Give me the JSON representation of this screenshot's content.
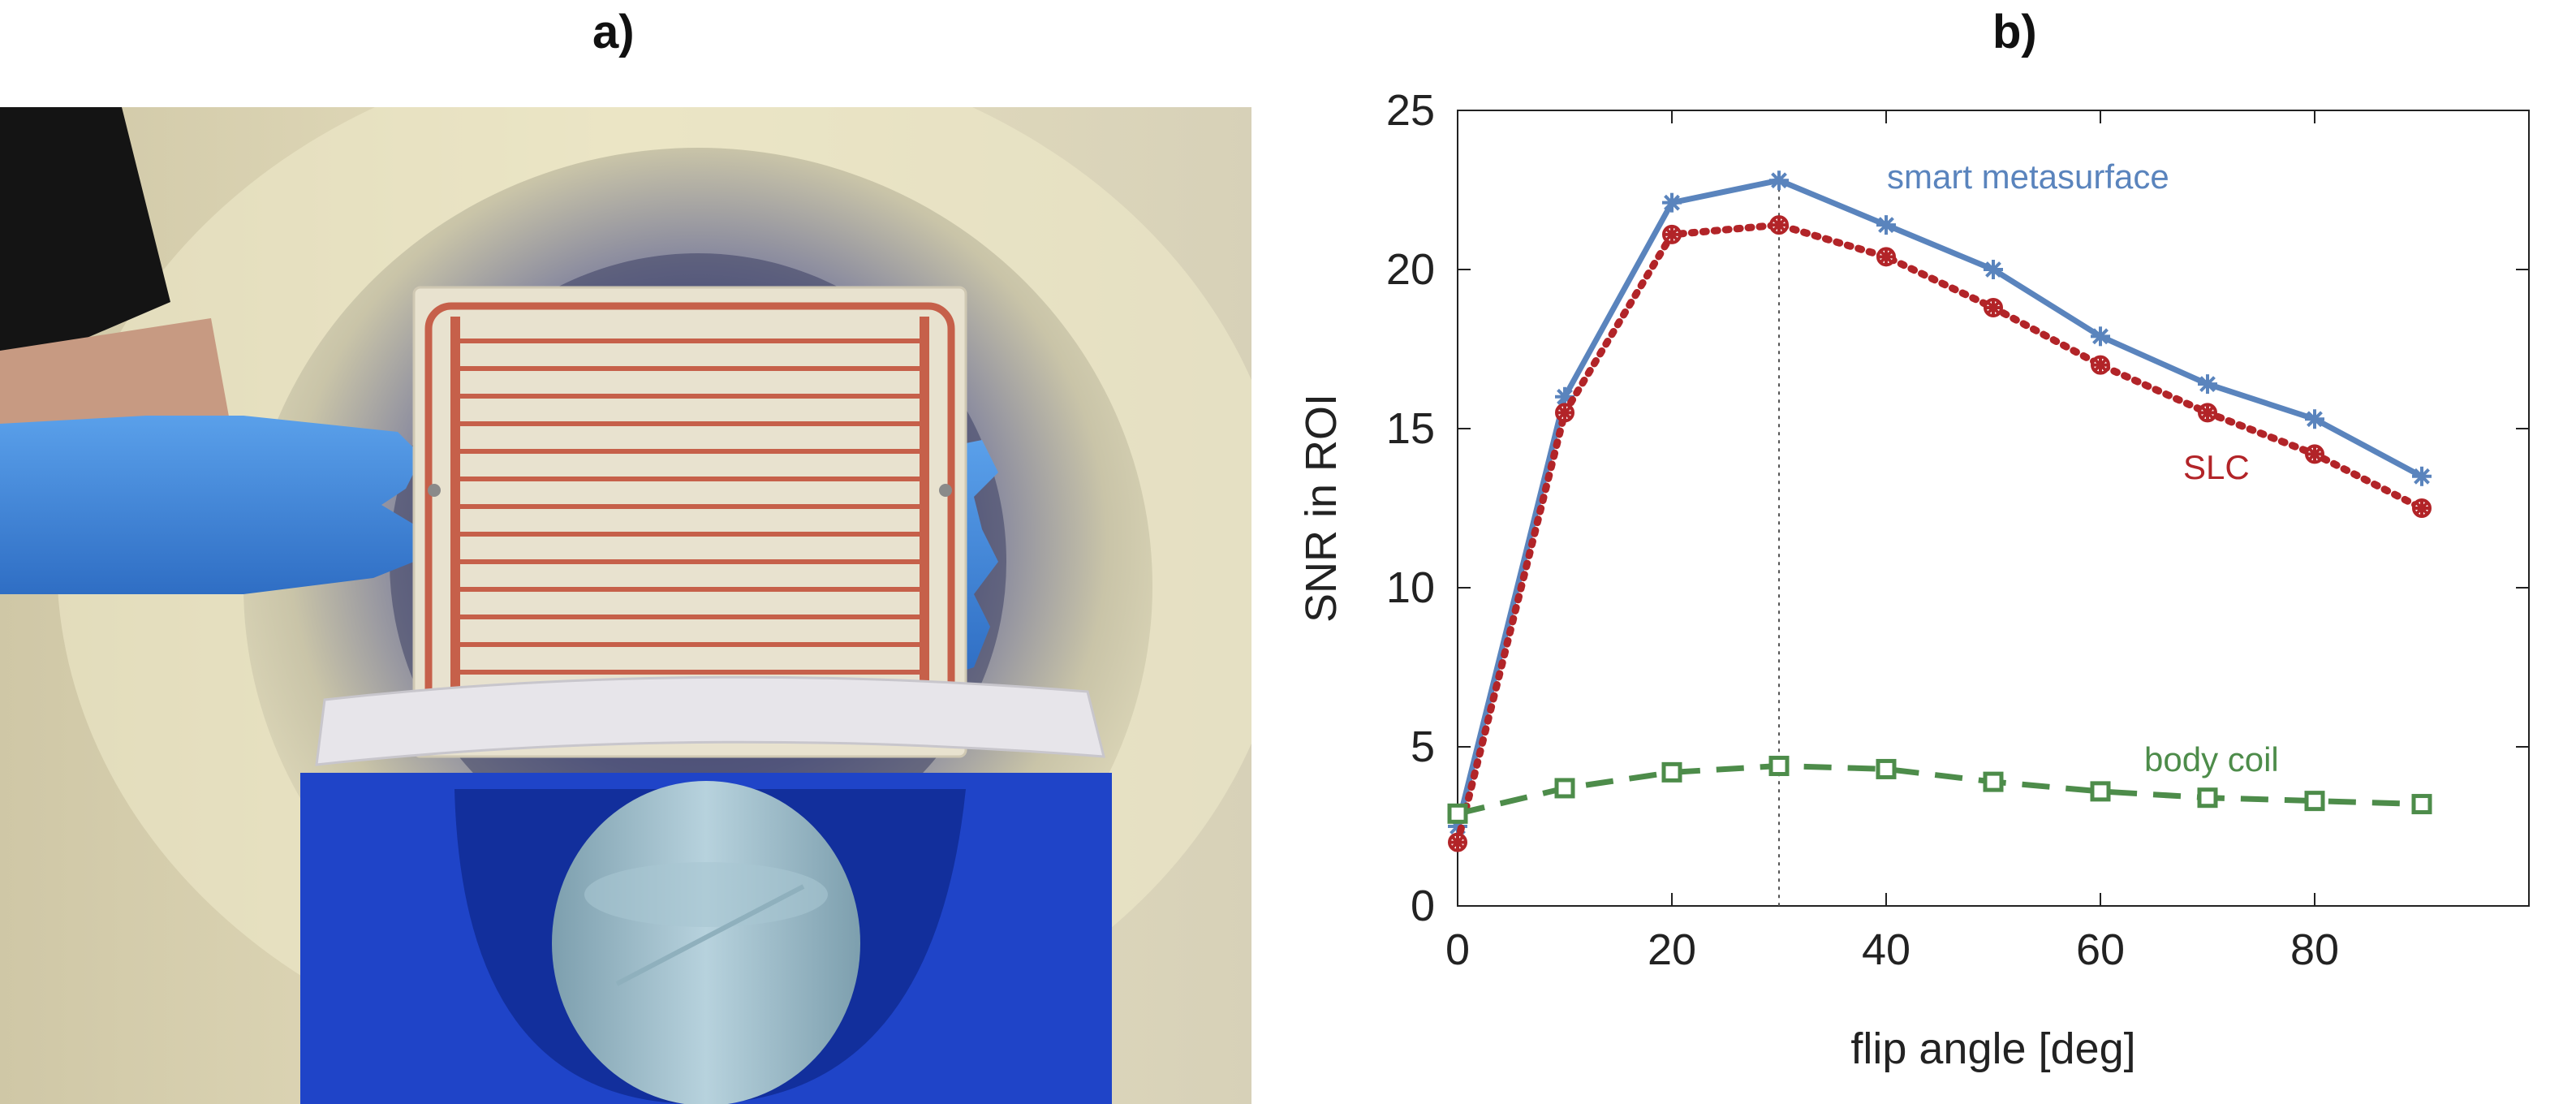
{
  "panels": {
    "a_label": "a)",
    "b_label": "b)"
  },
  "photo": {
    "description_icon": "metasurface-photo"
  },
  "chart_data": {
    "type": "line",
    "title": "",
    "xlabel": "flip angle [deg]",
    "ylabel": "SNR in ROI",
    "xlim": [
      0,
      100
    ],
    "ylim": [
      0,
      25
    ],
    "xticks": [
      0,
      20,
      40,
      60,
      80
    ],
    "yticks": [
      0,
      5,
      10,
      15,
      20,
      25
    ],
    "grid": false,
    "reference_line_x": 30,
    "x": [
      0,
      10,
      20,
      30,
      40,
      50,
      60,
      70,
      80,
      90
    ],
    "series": [
      {
        "name": "smart metasurface",
        "color": "#5a84bd",
        "style": "solid",
        "marker": "asterisk",
        "values": [
          2.5,
          16.0,
          22.1,
          22.8,
          21.4,
          20.0,
          17.9,
          16.4,
          15.3,
          13.5
        ]
      },
      {
        "name": "SLC",
        "color": "#b22428",
        "style": "dotted",
        "marker": "circle-asterisk",
        "values": [
          2.0,
          15.5,
          21.1,
          21.4,
          20.4,
          18.8,
          17.0,
          15.5,
          14.2,
          12.5
        ]
      },
      {
        "name": "body coil",
        "color": "#4d8c4a",
        "style": "dashed",
        "marker": "square",
        "values": [
          2.9,
          3.7,
          4.2,
          4.4,
          4.3,
          3.9,
          3.6,
          3.4,
          3.3,
          3.2
        ]
      }
    ]
  }
}
